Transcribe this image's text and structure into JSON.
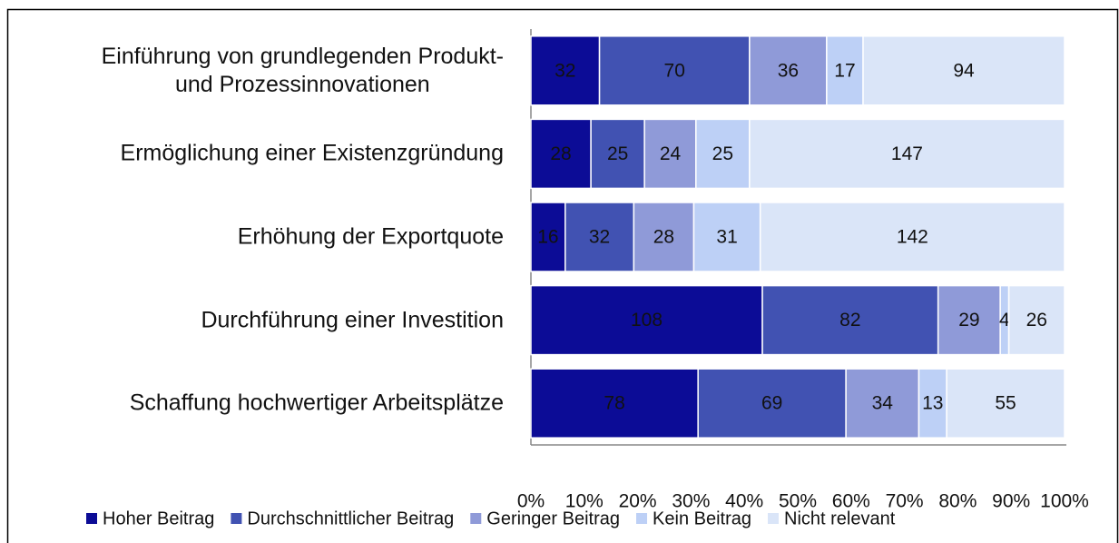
{
  "chart_data": {
    "type": "bar",
    "orientation": "horizontal",
    "stacked": "percent",
    "categories": [
      "Einführung von grundlegenden Produkt-\nund Prozessinnovationen",
      "Ermöglichung einer Existenzgründung",
      "Erhöhung der Exportquote",
      "Durchführung einer Investition",
      "Schaffung hochwertiger Arbeitsplätze"
    ],
    "series": [
      {
        "name": "Hoher Beitrag",
        "color": "#0c0c96",
        "values": [
          32,
          28,
          16,
          108,
          78
        ]
      },
      {
        "name": "Durchschnittlicher Beitrag",
        "color": "#4152b2",
        "values": [
          70,
          25,
          32,
          82,
          69
        ]
      },
      {
        "name": "Geringer Beitrag",
        "color": "#8f9ad8",
        "values": [
          36,
          24,
          28,
          29,
          34
        ]
      },
      {
        "name": "Kein Beitrag",
        "color": "#bdd0f6",
        "values": [
          17,
          25,
          31,
          4,
          13
        ]
      },
      {
        "name": "Nicht relevant",
        "color": "#dae5f8",
        "values": [
          94,
          147,
          142,
          26,
          55
        ]
      }
    ],
    "xlim": [
      0,
      100
    ],
    "xticks": [
      {
        "value": 0,
        "label": "0%"
      },
      {
        "value": 10,
        "label": "10%"
      },
      {
        "value": 20,
        "label": "20%"
      },
      {
        "value": 30,
        "label": "30%"
      },
      {
        "value": 40,
        "label": "40%"
      },
      {
        "value": 50,
        "label": "50%"
      },
      {
        "value": 60,
        "label": "60%"
      },
      {
        "value": 70,
        "label": "70%"
      },
      {
        "value": 80,
        "label": "80%"
      },
      {
        "value": 90,
        "label": "90%"
      },
      {
        "value": 100,
        "label": "100%"
      }
    ],
    "legend": "bottom"
  }
}
